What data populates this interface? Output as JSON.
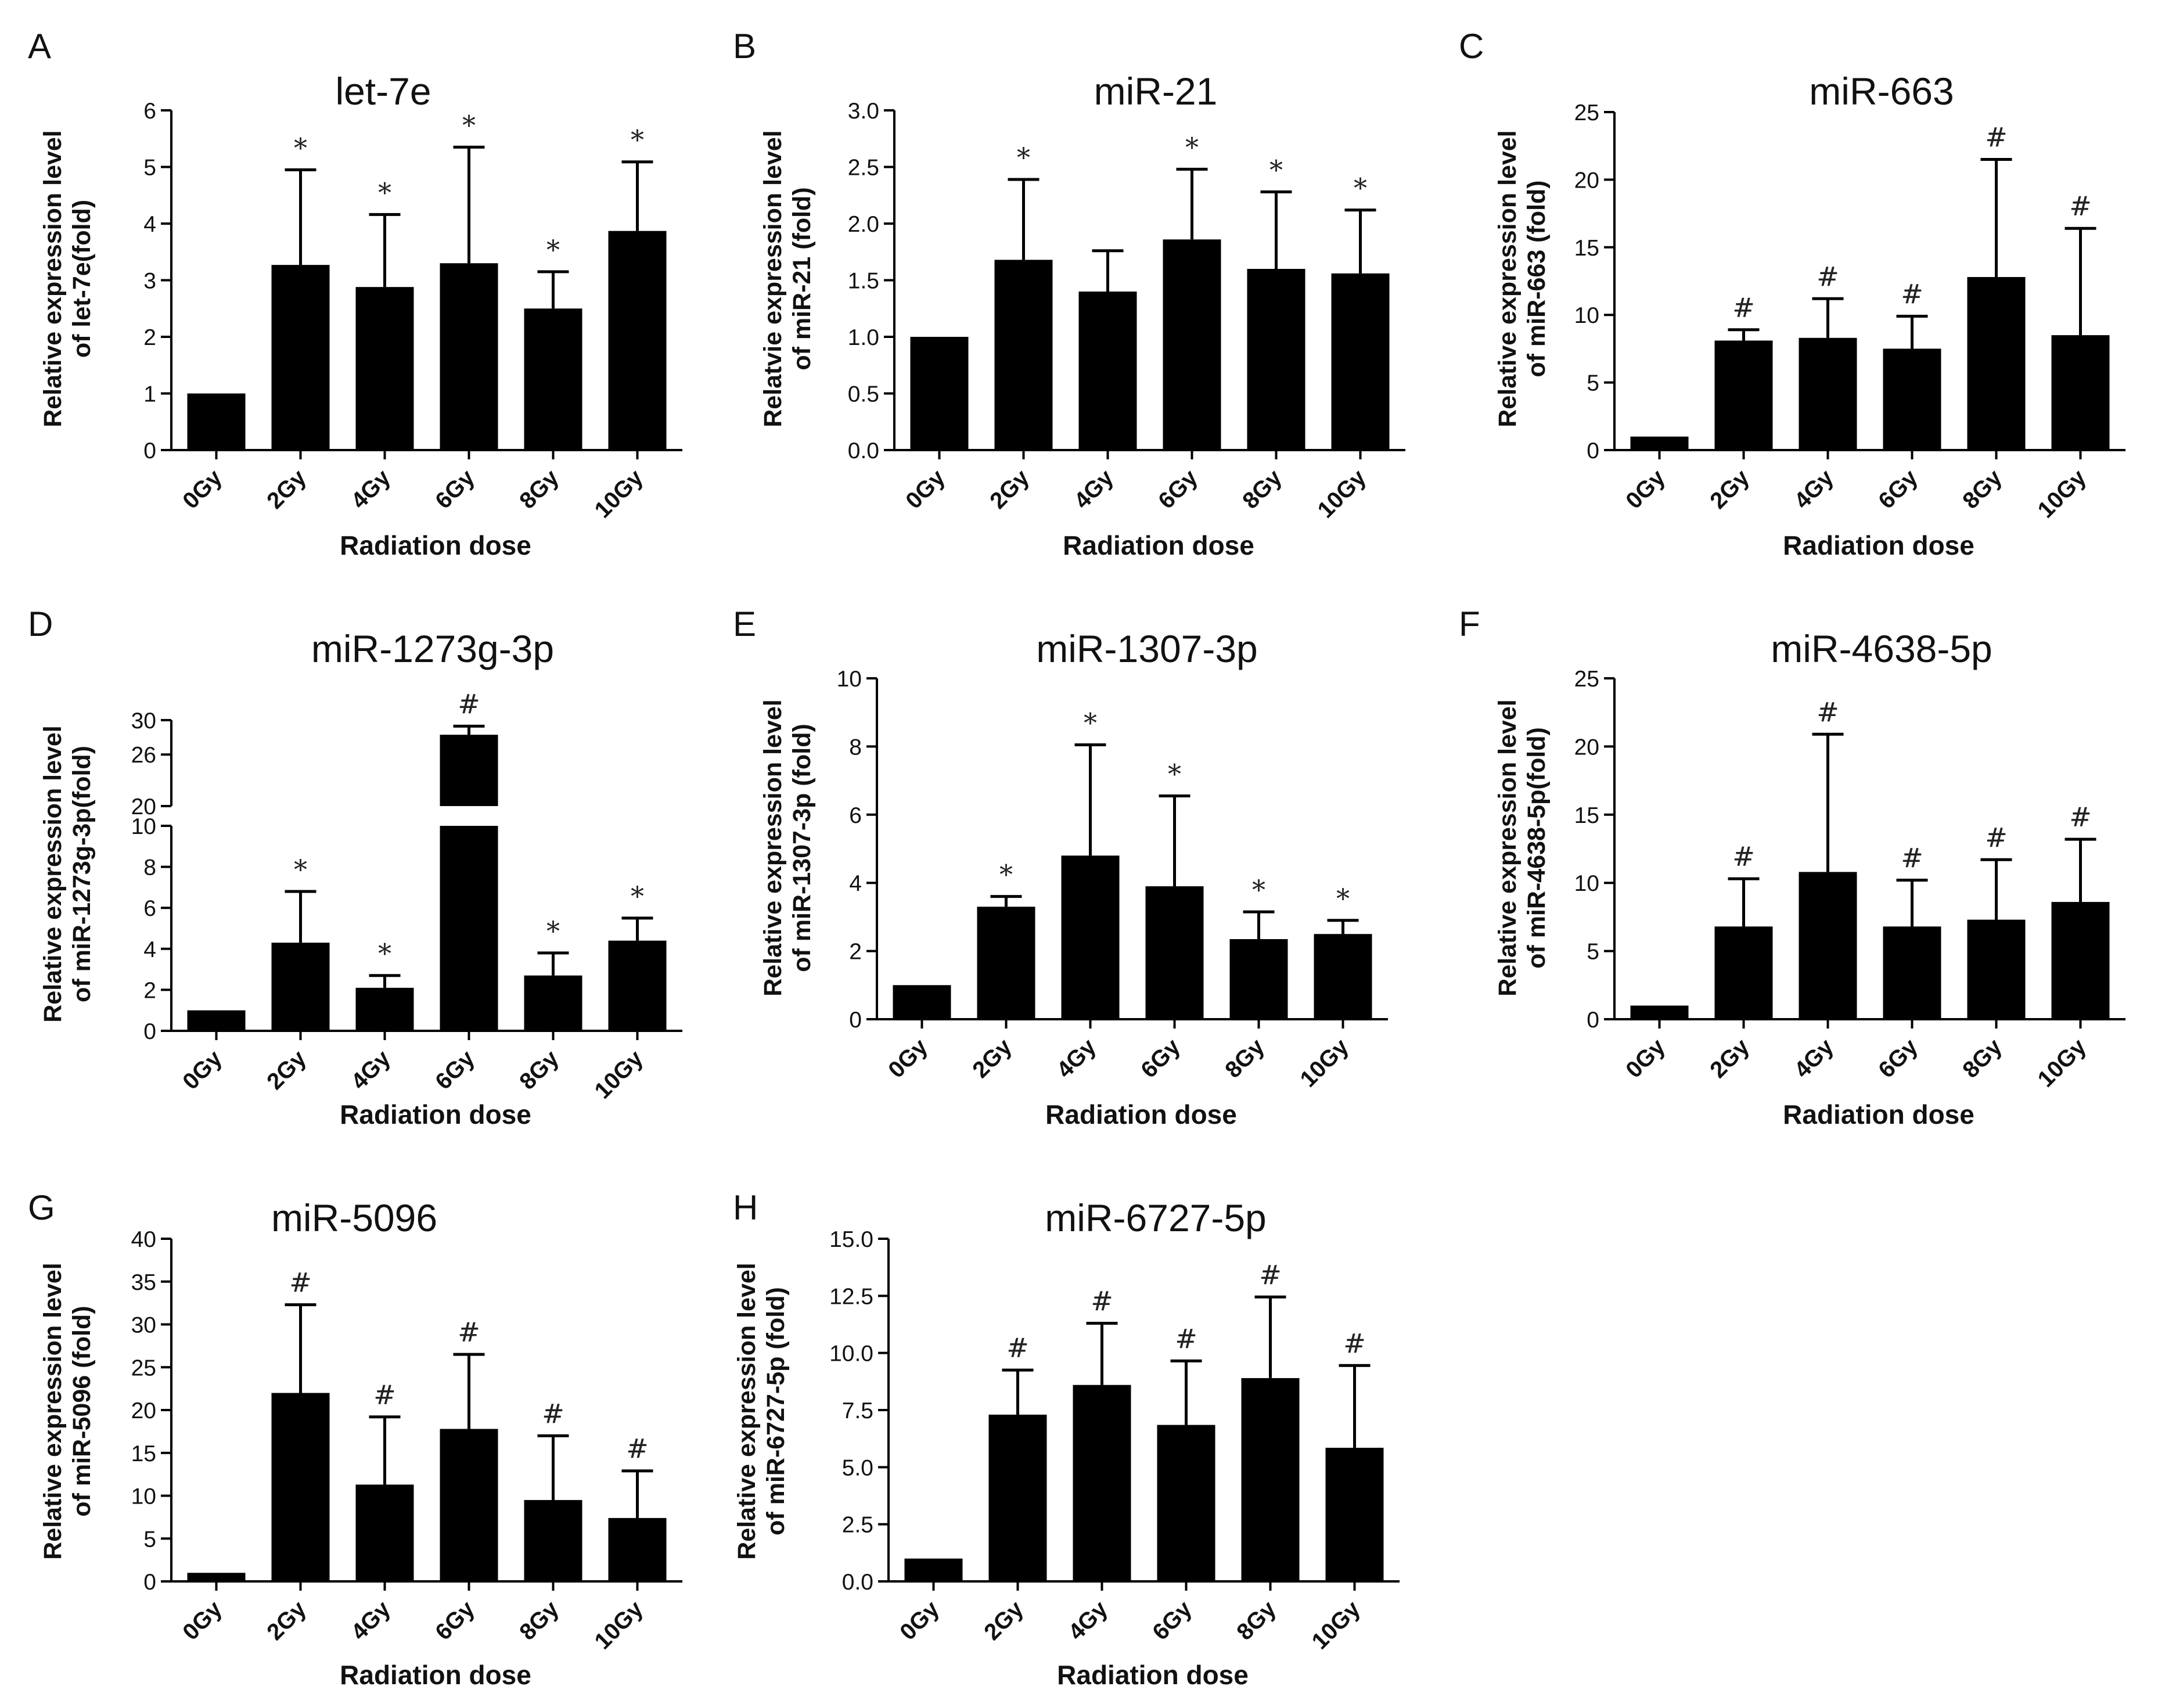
{
  "chart_data": [
    {
      "type": "bar",
      "letter": "A",
      "title": "let-7e",
      "ylabel": [
        "Relative expression level",
        "of let-7e(fold)"
      ],
      "xlabel": "Radiation dose",
      "categories": [
        "0Gy",
        "2Gy",
        "4Gy",
        "6Gy",
        "8Gy",
        "10Gy"
      ],
      "values": [
        1.0,
        3.27,
        2.88,
        3.3,
        2.5,
        3.87
      ],
      "errors": [
        0,
        1.68,
        1.28,
        2.05,
        0.65,
        1.22
      ],
      "marks": [
        "",
        "*",
        "*",
        "*",
        "*",
        "*"
      ],
      "ylim": [
        0,
        6
      ],
      "yticks": [
        0,
        1,
        2,
        3,
        4,
        5,
        6
      ],
      "yticklabels": [
        "0",
        "1",
        "2",
        "3",
        "4",
        "5",
        "6"
      ]
    },
    {
      "type": "bar",
      "letter": "B",
      "title": "miR-21",
      "ylabel": [
        "Relatvie expression level",
        "of miR-21 (fold)"
      ],
      "xlabel": "Radiation dose",
      "categories": [
        "0Gy",
        "2Gy",
        "4Gy",
        "6Gy",
        "8Gy",
        "10Gy"
      ],
      "values": [
        1.0,
        1.68,
        1.4,
        1.86,
        1.6,
        1.56
      ],
      "errors": [
        0,
        0.71,
        0.36,
        0.62,
        0.68,
        0.56
      ],
      "marks": [
        "",
        "*",
        "",
        "*",
        "*",
        "*"
      ],
      "ylim": [
        0,
        3.0
      ],
      "yticks": [
        0,
        0.5,
        1.0,
        1.5,
        2.0,
        2.5,
        3.0
      ],
      "yticklabels": [
        "0.0",
        "0.5",
        "1.0",
        "1.5",
        "2.0",
        "2.5",
        "3.0"
      ]
    },
    {
      "type": "bar",
      "letter": "C",
      "title": "miR-663",
      "ylabel": [
        "Relative expression level",
        "of miR-663 (fold)"
      ],
      "xlabel": "Radiation dose",
      "categories": [
        "0Gy",
        "2Gy",
        "4Gy",
        "6Gy",
        "8Gy",
        "10Gy"
      ],
      "values": [
        1.0,
        8.1,
        8.3,
        7.5,
        12.8,
        8.5
      ],
      "errors": [
        0,
        0.8,
        2.9,
        2.4,
        8.7,
        7.9
      ],
      "marks": [
        "",
        "#",
        "#",
        "#",
        "#",
        "#"
      ],
      "ylim": [
        0,
        25
      ],
      "yticks": [
        0,
        5,
        10,
        15,
        20,
        25
      ],
      "yticklabels": [
        "0",
        "5",
        "10",
        "15",
        "20",
        "25"
      ]
    },
    {
      "type": "bar",
      "letter": "D",
      "title": "miR-1273g-3p",
      "ylabel": [
        "Relative expression level",
        "of miR-1273g-3p(fold)"
      ],
      "xlabel": "Radiation dose",
      "categories": [
        "0Gy",
        "2Gy",
        "4Gy",
        "6Gy",
        "8Gy",
        "10Gy"
      ],
      "values": [
        1.0,
        4.3,
        2.1,
        28.3,
        2.7,
        4.4
      ],
      "errors": [
        0,
        2.5,
        0.6,
        1.0,
        1.1,
        1.1
      ],
      "marks": [
        "",
        "*",
        "*",
        "#",
        "*",
        "*"
      ],
      "ylim": [
        0,
        30
      ],
      "yticks": [
        0,
        2,
        4,
        6,
        8,
        10,
        20,
        26,
        30
      ],
      "yticklabels": [
        "0",
        "2",
        "4",
        "6",
        "8",
        "10",
        "20",
        "26",
        "30"
      ],
      "axis_break": [
        10,
        20
      ]
    },
    {
      "type": "bar",
      "letter": "E",
      "title": "miR-1307-3p",
      "ylabel": [
        "Relative expression level",
        "of miR-1307-3p (fold)"
      ],
      "xlabel": "Radiation dose",
      "categories": [
        "0Gy",
        "2Gy",
        "4Gy",
        "6Gy",
        "8Gy",
        "10Gy"
      ],
      "values": [
        1.0,
        3.3,
        4.8,
        3.9,
        2.35,
        2.5
      ],
      "errors": [
        0,
        0.3,
        3.25,
        2.65,
        0.8,
        0.4
      ],
      "marks": [
        "",
        "*",
        "*",
        "*",
        "*",
        "*"
      ],
      "ylim": [
        0,
        10
      ],
      "yticks": [
        0,
        2,
        4,
        6,
        8,
        10
      ],
      "yticklabels": [
        "0",
        "2",
        "4",
        "6",
        "8",
        "10"
      ]
    },
    {
      "type": "bar",
      "letter": "F",
      "title": "miR-4638-5p",
      "ylabel": [
        "Relative expression level",
        "of miR-4638-5p(fold)"
      ],
      "xlabel": "Radiation dose",
      "categories": [
        "0Gy",
        "2Gy",
        "4Gy",
        "6Gy",
        "8Gy",
        "10Gy"
      ],
      "values": [
        1.0,
        6.8,
        10.8,
        6.8,
        7.3,
        8.6
      ],
      "errors": [
        0,
        3.5,
        10.1,
        3.4,
        4.4,
        4.6
      ],
      "marks": [
        "",
        "#",
        "#",
        "#",
        "#",
        "#"
      ],
      "ylim": [
        0,
        25
      ],
      "yticks": [
        0,
        5,
        10,
        15,
        20,
        25
      ],
      "yticklabels": [
        "0",
        "5",
        "10",
        "15",
        "20",
        "25"
      ]
    },
    {
      "type": "bar",
      "letter": "G",
      "title": "miR-5096",
      "ylabel": [
        "Relative expression level",
        "of miR-5096 (fold)"
      ],
      "xlabel": "Radiation dose",
      "categories": [
        "0Gy",
        "2Gy",
        "4Gy",
        "6Gy",
        "8Gy",
        "10Gy"
      ],
      "values": [
        1.0,
        22.0,
        11.3,
        17.8,
        9.5,
        7.4
      ],
      "errors": [
        0,
        10.3,
        7.9,
        8.7,
        7.5,
        5.5
      ],
      "marks": [
        "",
        "#",
        "#",
        "#",
        "#",
        "#"
      ],
      "ylim": [
        0,
        40
      ],
      "yticks": [
        0,
        5,
        10,
        15,
        20,
        25,
        30,
        35,
        40
      ],
      "yticklabels": [
        "0",
        "5",
        "10",
        "15",
        "20",
        "25",
        "30",
        "35",
        "40"
      ]
    },
    {
      "type": "bar",
      "letter": "H",
      "title": "miR-6727-5p",
      "ylabel": [
        "Relative expression level",
        "of miR-6727-5p (fold)"
      ],
      "xlabel": "Radiation dose",
      "categories": [
        "0Gy",
        "2Gy",
        "4Gy",
        "6Gy",
        "8Gy",
        "10Gy"
      ],
      "values": [
        1.0,
        7.3,
        8.6,
        6.85,
        8.9,
        5.85
      ],
      "errors": [
        0,
        1.95,
        2.7,
        2.8,
        3.55,
        3.6
      ],
      "marks": [
        "",
        "#",
        "#",
        "#",
        "#",
        "#"
      ],
      "ylim": [
        0,
        15
      ],
      "yticks": [
        0,
        2.5,
        5,
        7.5,
        10,
        12.5,
        15
      ],
      "yticklabels": [
        "0.0",
        "2.5",
        "5.0",
        "7.5",
        "10.0",
        "12.5",
        "15.0"
      ]
    }
  ]
}
